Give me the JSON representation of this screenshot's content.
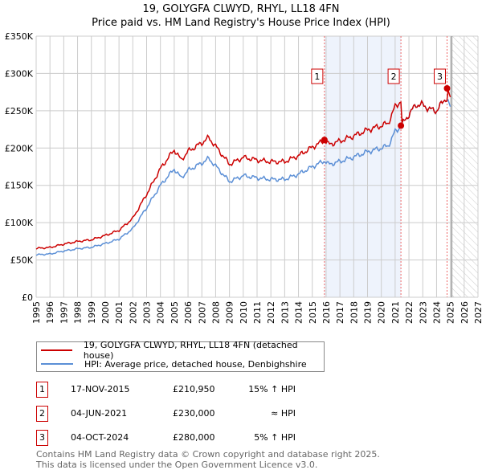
{
  "title": "19, GOLYGFA CLWYD, RHYL, LL18 4FN",
  "subtitle": "Price paid vs. HM Land Registry's House Price Index (HPI)",
  "chart_data": {
    "type": "line",
    "xlim": [
      1995,
      2027
    ],
    "ylim": [
      0,
      350000
    ],
    "xticks": [
      "1995",
      "1996",
      "1997",
      "1998",
      "1999",
      "2000",
      "2001",
      "2002",
      "2003",
      "2004",
      "2005",
      "2006",
      "2007",
      "2008",
      "2009",
      "2010",
      "2011",
      "2012",
      "2013",
      "2014",
      "2015",
      "2016",
      "2017",
      "2018",
      "2019",
      "2020",
      "2021",
      "2022",
      "2023",
      "2024",
      "2025",
      "2026",
      "2027"
    ],
    "yticks": [
      {
        "v": 0,
        "l": "£0"
      },
      {
        "v": 50000,
        "l": "£50K"
      },
      {
        "v": 100000,
        "l": "£100K"
      },
      {
        "v": 150000,
        "l": "£150K"
      },
      {
        "v": 200000,
        "l": "£200K"
      },
      {
        "v": 250000,
        "l": "£250K"
      },
      {
        "v": 300000,
        "l": "£300K"
      },
      {
        "v": 350000,
        "l": "£350K"
      }
    ],
    "hpi": {
      "name": "HPI: Average price, detached house, Denbighshire",
      "color": "#5b8fd6",
      "x": [
        1995,
        1996,
        1997,
        1998,
        1999,
        2000,
        2001,
        2002,
        2003,
        2004,
        2005,
        2005.5,
        2006,
        2007,
        2007.5,
        2008,
        2009,
        2010,
        2011,
        2012,
        2013,
        2014,
        2015,
        2015.9,
        2016.2,
        2017,
        2018,
        2019,
        2020,
        2020.5,
        2021,
        2021.4,
        2022,
        2022.5,
        2023,
        2023.5,
        2024,
        2024.7,
        2025
      ],
      "y": [
        57000,
        58000,
        62000,
        65000,
        67000,
        72000,
        78000,
        92000,
        120000,
        150000,
        172000,
        160000,
        170000,
        180000,
        186000,
        176000,
        155000,
        163000,
        160000,
        158000,
        158000,
        165000,
        175000,
        183000,
        178000,
        182000,
        188000,
        195000,
        200000,
        203000,
        222000,
        229000,
        245000,
        258000,
        258000,
        252000,
        250000,
        268000,
        254000
      ]
    },
    "property": {
      "name": "19, GOLYGFA CLWYD, RHYL, LL18 4FN (detached house)",
      "color": "#cc0000"
    },
    "sales": [
      {
        "n": "1",
        "x": 2015.88,
        "date": "17-NOV-2015",
        "price": 210950,
        "price_label": "£210,950",
        "hpi": "15% ↑ HPI"
      },
      {
        "n": "2",
        "x": 2021.42,
        "date": "04-JUN-2021",
        "price": 230000,
        "price_label": "£230,000",
        "hpi": "≈ HPI"
      },
      {
        "n": "3",
        "x": 2024.76,
        "date": "04-OCT-2024",
        "price": 280000,
        "price_label": "£280,000",
        "hpi": "5% ↑ HPI"
      }
    ],
    "forecast_start": 2025.1
  },
  "footer1": "Contains HM Land Registry data © Crown copyright and database right 2025.",
  "footer2": "This data is licensed under the Open Government Licence v3.0."
}
